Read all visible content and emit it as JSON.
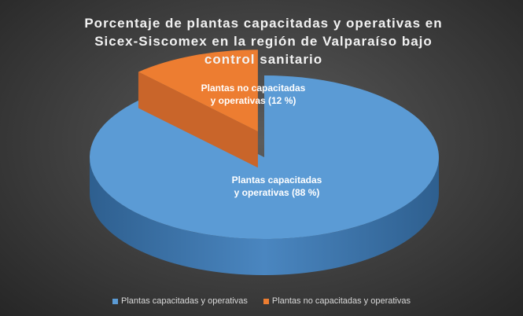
{
  "chart_data": {
    "type": "pie",
    "title": "Porcentaje de plantas capacitadas y operativas en Sicex-Siscomex en la región de Valparaíso bajo control sanitario",
    "categories": [
      "Plantas capacitadas y operativas",
      "Plantas no capacitadas y operativas"
    ],
    "values": [
      88,
      12
    ],
    "value_labels": [
      "Plantas capacitadas y operativas (88 %)",
      "Plantas no capacitadas y operativas (12 %)"
    ],
    "colors": [
      "#5b9bd5",
      "#ed7d31"
    ],
    "legend": "bottom"
  }
}
